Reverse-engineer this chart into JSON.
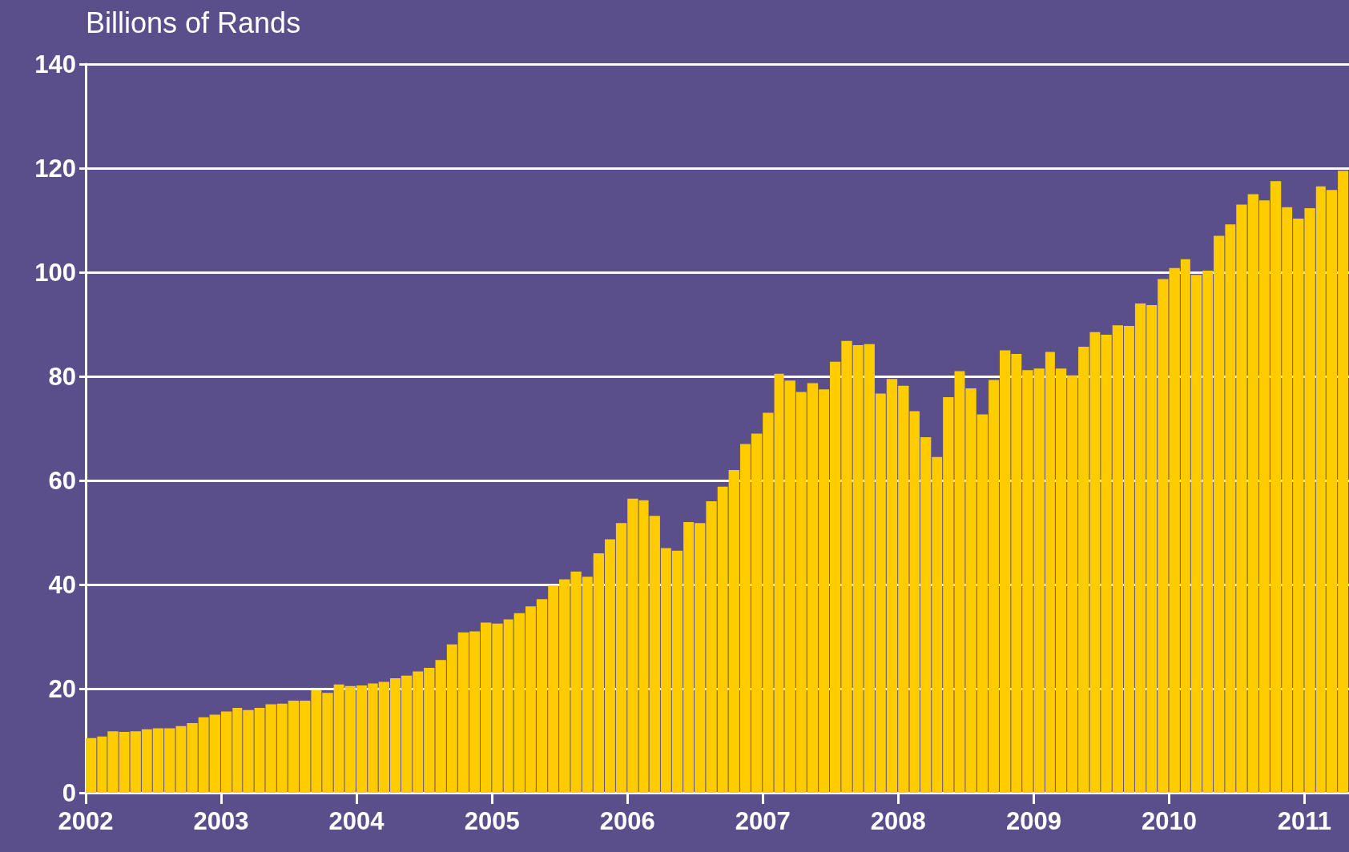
{
  "chart_data": {
    "type": "bar",
    "ylabel": "Billions of Rands",
    "x": [
      "2002-01",
      "2002-02",
      "2002-03",
      "2002-04",
      "2002-05",
      "2002-06",
      "2002-07",
      "2002-08",
      "2002-09",
      "2002-10",
      "2002-11",
      "2002-12",
      "2003-01",
      "2003-02",
      "2003-03",
      "2003-04",
      "2003-05",
      "2003-06",
      "2003-07",
      "2003-08",
      "2003-09",
      "2003-10",
      "2003-11",
      "2003-12",
      "2004-01",
      "2004-02",
      "2004-03",
      "2004-04",
      "2004-05",
      "2004-06",
      "2004-07",
      "2004-08",
      "2004-09",
      "2004-10",
      "2004-11",
      "2004-12",
      "2005-01",
      "2005-02",
      "2005-03",
      "2005-04",
      "2005-05",
      "2005-06",
      "2005-07",
      "2005-08",
      "2005-09",
      "2005-10",
      "2005-11",
      "2005-12",
      "2006-01",
      "2006-02",
      "2006-03",
      "2006-04",
      "2006-05",
      "2006-06",
      "2006-07",
      "2006-08",
      "2006-09",
      "2006-10",
      "2006-11",
      "2006-12",
      "2007-01",
      "2007-02",
      "2007-03",
      "2007-04",
      "2007-05",
      "2007-06",
      "2007-07",
      "2007-08",
      "2007-09",
      "2007-10",
      "2007-11",
      "2007-12",
      "2008-01",
      "2008-02",
      "2008-03",
      "2008-04",
      "2008-05",
      "2008-06",
      "2008-07",
      "2008-08",
      "2008-09",
      "2008-10",
      "2008-11",
      "2008-12",
      "2009-01",
      "2009-02",
      "2009-03",
      "2009-04",
      "2009-05",
      "2009-06",
      "2009-07",
      "2009-08",
      "2009-09",
      "2009-10",
      "2009-11",
      "2009-12",
      "2010-01",
      "2010-02",
      "2010-03",
      "2010-04",
      "2010-05",
      "2010-06",
      "2010-07",
      "2010-08",
      "2010-09",
      "2010-10",
      "2010-11",
      "2010-12",
      "2011-01",
      "2011-02",
      "2011-03",
      "2011-04"
    ],
    "values": [
      10.5,
      10.8,
      11.8,
      11.7,
      11.8,
      12.2,
      12.4,
      12.4,
      12.8,
      13.4,
      14.5,
      15,
      15.6,
      16.3,
      15.9,
      16.3,
      17,
      17.1,
      17.7,
      17.7,
      19.7,
      19.2,
      20.8,
      20.5,
      20.6,
      21,
      21.3,
      22,
      22.5,
      23.3,
      24,
      25.5,
      28.5,
      30.8,
      31,
      32.7,
      32.5,
      33.3,
      34.5,
      35.8,
      37.2,
      39.8,
      41,
      42.5,
      41.5,
      46,
      48.7,
      51.8,
      56.5,
      56.2,
      53.2,
      47,
      46.5,
      52,
      51.8,
      56,
      58.8,
      62,
      67,
      69,
      73,
      80.5,
      79.2,
      77,
      78.7,
      77.5,
      82.8,
      86.8,
      86,
      86.2,
      76.7,
      79.5,
      78.2,
      73.3,
      68.3,
      64.5,
      76,
      81,
      77.7,
      72.7,
      79.3,
      85,
      84.3,
      81.2,
      81.5,
      84.7,
      81.5,
      80.2,
      85.7,
      88.5,
      88,
      89.8,
      89.7,
      94,
      93.7,
      98.7,
      100.8,
      102.5,
      99.5,
      100.3,
      107,
      109.2,
      113,
      115,
      113.8,
      117.5,
      112.5,
      110.3,
      112.3,
      116.5,
      115.8,
      119.5
    ],
    "color": "#ffcc00",
    "xlim": [
      "2002-01",
      "2011-05"
    ],
    "xticks": [
      "2002",
      "2003",
      "2004",
      "2005",
      "2006",
      "2007",
      "2008",
      "2009",
      "2010",
      "2011"
    ],
    "ylim": [
      0,
      140
    ],
    "yticks": [
      0,
      20,
      40,
      60,
      80,
      100,
      120,
      140
    ],
    "grid": "y"
  }
}
